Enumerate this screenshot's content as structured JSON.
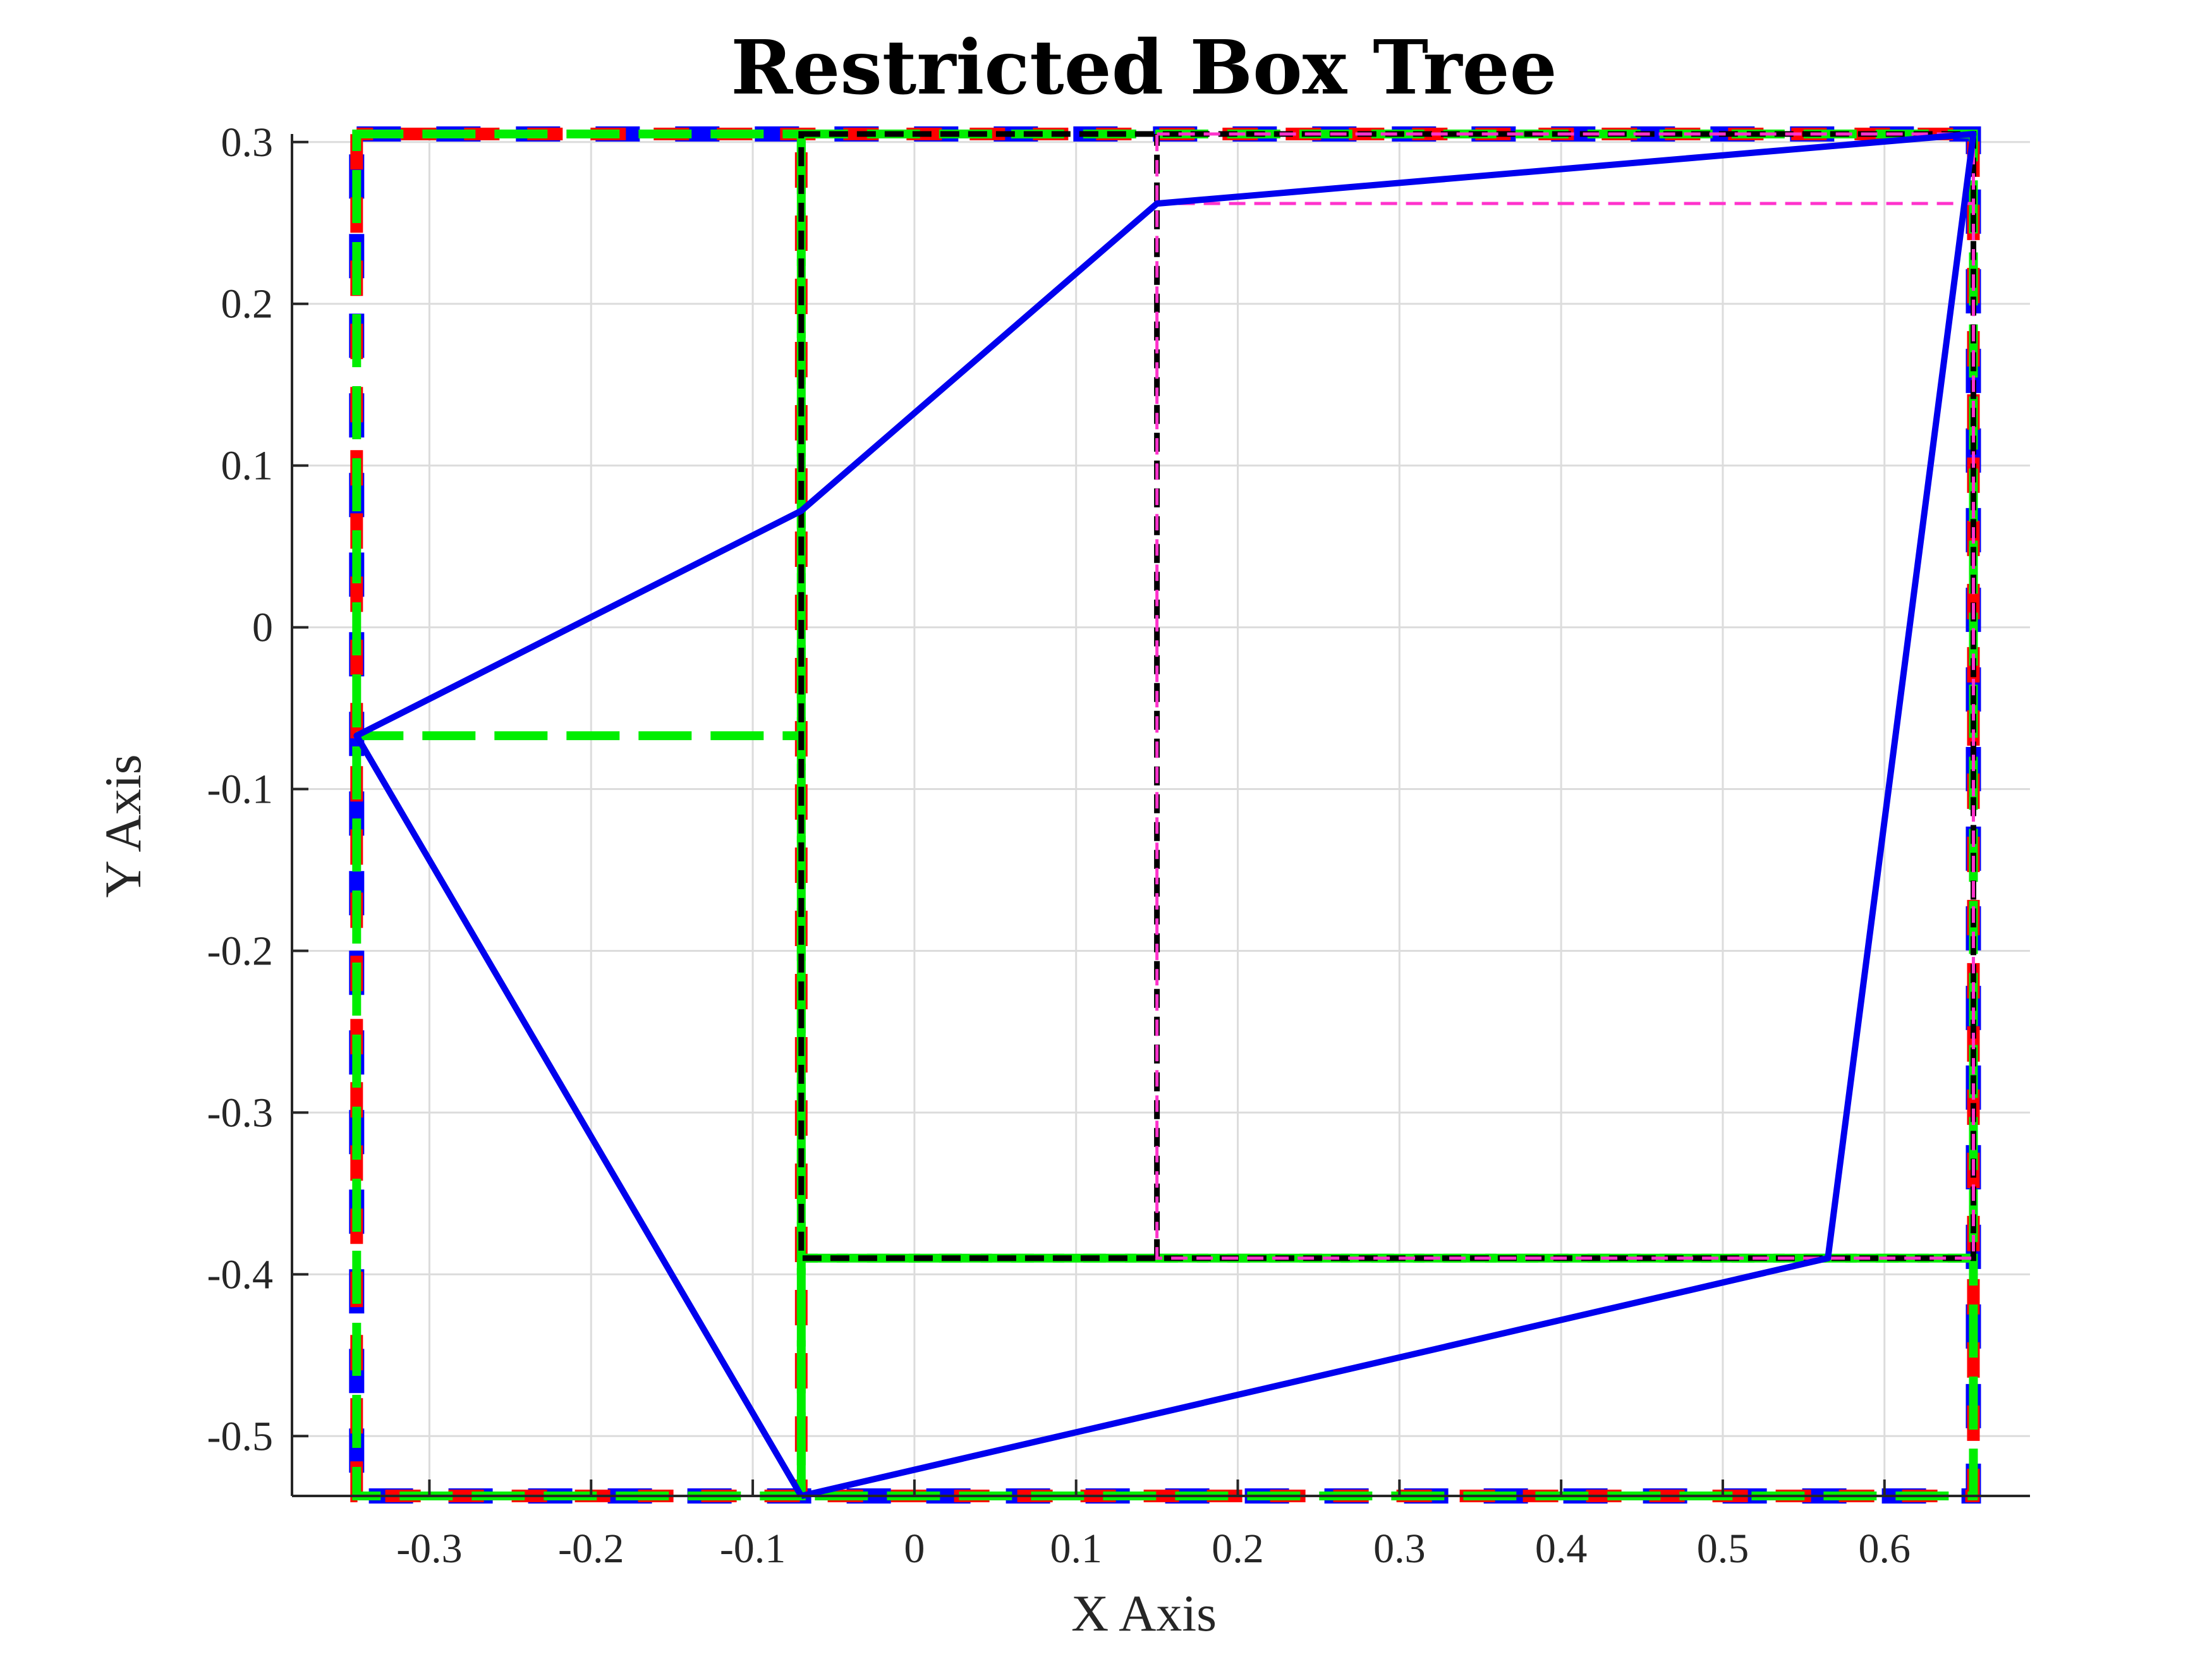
{
  "chart_data": {
    "type": "line",
    "title": "Restricted Box Tree",
    "xlabel": "X Axis",
    "ylabel": "Y Axis",
    "xlim": [
      -0.385,
      0.69
    ],
    "ylim": [
      -0.537,
      0.305
    ],
    "xticks": [
      -0.3,
      -0.2,
      -0.1,
      0,
      0.1,
      0.2,
      0.3,
      0.4,
      0.5,
      0.6
    ],
    "xtick_labels": [
      "-0.3",
      "-0.2",
      "-0.1",
      "0",
      "0.1",
      "0.2",
      "0.3",
      "0.4",
      "0.5",
      "0.6"
    ],
    "yticks": [
      0.3,
      0.2,
      0.1,
      0,
      -0.1,
      -0.2,
      -0.3,
      -0.4,
      -0.5
    ],
    "ytick_labels": [
      "0.3",
      "0.2",
      "0.1",
      "0",
      "-0.1",
      "-0.2",
      "-0.3",
      "-0.4",
      "-0.5"
    ],
    "grid": true,
    "path": {
      "color": "#0000ee",
      "points": [
        [
          -0.07,
          -0.537
        ],
        [
          -0.345,
          -0.067
        ],
        [
          -0.07,
          0.072
        ],
        [
          0.15,
          0.262
        ],
        [
          0.655,
          0.305
        ],
        [
          0.565,
          -0.39
        ],
        [
          -0.07,
          -0.537
        ]
      ]
    },
    "boxes": [
      {
        "level": 1,
        "color": "#0000ff",
        "x": [
          -0.345,
          0.655
        ],
        "y": [
          -0.537,
          0.305
        ]
      },
      {
        "level": 2,
        "color": "#ff0000",
        "x": [
          -0.345,
          0.655
        ],
        "y": [
          -0.537,
          0.305
        ]
      },
      {
        "level": 2,
        "color": "#ff0000",
        "x": [
          -0.07,
          -0.07
        ],
        "y": [
          -0.537,
          0.305
        ]
      },
      {
        "level": 3,
        "color": "#00ee00",
        "x": [
          -0.345,
          -0.07
        ],
        "y": [
          -0.537,
          0.305
        ]
      },
      {
        "level": 3,
        "color": "#00ee00",
        "x": [
          -0.345,
          -0.07
        ],
        "y": [
          -0.067,
          -0.067
        ]
      },
      {
        "level": 3,
        "color": "#00ee00",
        "x": [
          -0.07,
          0.655
        ],
        "y": [
          -0.39,
          0.305
        ]
      },
      {
        "level": 3,
        "color": "#00ee00",
        "x": [
          -0.07,
          0.655
        ],
        "y": [
          -0.537,
          -0.39
        ]
      },
      {
        "level": 4,
        "color": "#000000",
        "x": [
          -0.07,
          0.655
        ],
        "y": [
          -0.39,
          0.305
        ]
      },
      {
        "level": 4,
        "color": "#000000",
        "x": [
          0.15,
          0.15
        ],
        "y": [
          -0.39,
          0.305
        ]
      },
      {
        "level": 5,
        "color": "#ff33cc",
        "x": [
          0.15,
          0.655
        ],
        "y": [
          -0.39,
          0.305
        ]
      },
      {
        "level": 5,
        "color": "#ff33cc",
        "x": [
          0.15,
          0.655
        ],
        "y": [
          0.262,
          0.262
        ]
      }
    ]
  }
}
